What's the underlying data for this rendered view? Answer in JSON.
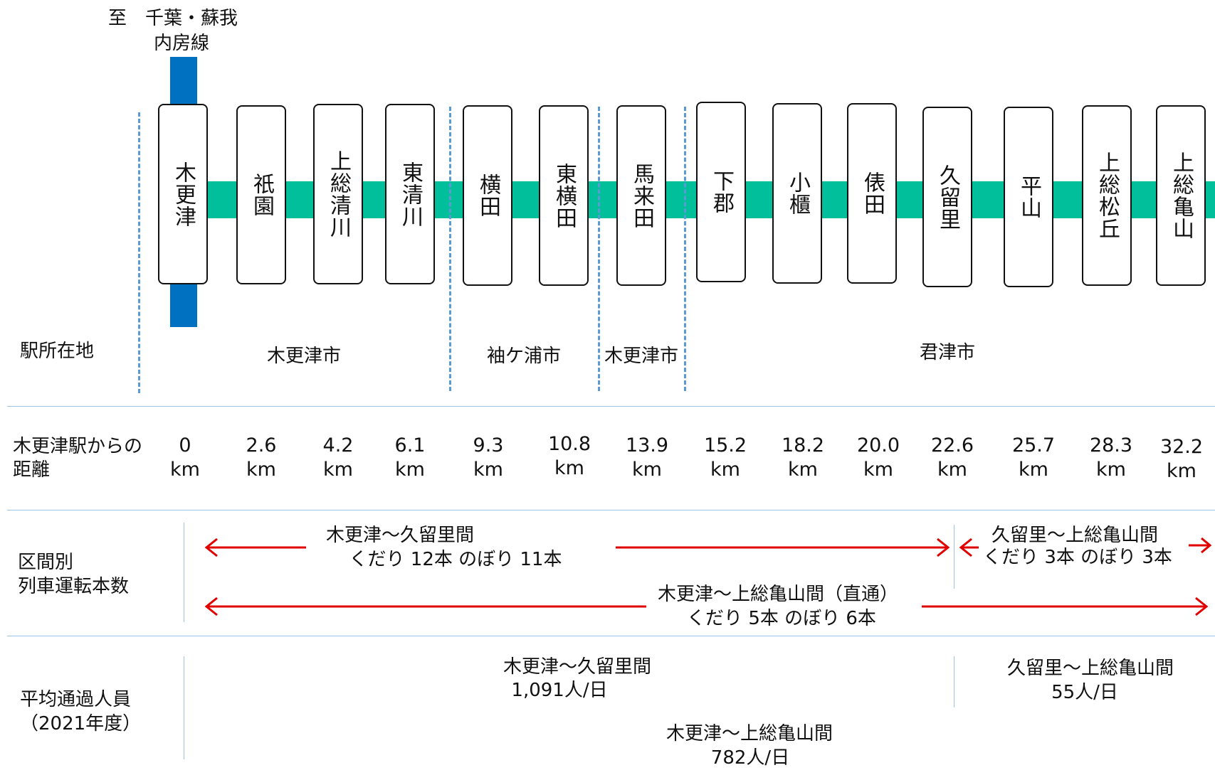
{
  "header": {
    "direction": "至　千葉・蘇我",
    "line": "内房線"
  },
  "stations": [
    {
      "name": "木更津",
      "dist": "0",
      "unit": "km"
    },
    {
      "name": "祇園",
      "dist": "2.6",
      "unit": "km"
    },
    {
      "name": "上総清川",
      "dist": "4.2",
      "unit": "km"
    },
    {
      "name": "東清川",
      "dist": "6.1",
      "unit": "km"
    },
    {
      "name": "横田",
      "dist": "9.3",
      "unit": "km"
    },
    {
      "name": "東横田",
      "dist": "10.8",
      "unit": "km"
    },
    {
      "name": "馬来田",
      "dist": "13.9",
      "unit": "km"
    },
    {
      "name": "下郡",
      "dist": "15.2",
      "unit": "km"
    },
    {
      "name": "小櫃",
      "dist": "18.2",
      "unit": "km"
    },
    {
      "name": "俵田",
      "dist": "20.0",
      "unit": "km"
    },
    {
      "name": "久留里",
      "dist": "22.6",
      "unit": "km"
    },
    {
      "name": "平山",
      "dist": "25.7",
      "unit": "km"
    },
    {
      "name": "上総松丘",
      "dist": "28.3",
      "unit": "km"
    },
    {
      "name": "上総亀山",
      "dist": "32.2",
      "unit": "km"
    }
  ],
  "rows": {
    "location_label": "駅所在地",
    "distance_label_1": "木更津駅からの",
    "distance_label_2": "距離",
    "trains_label_1": "区間別",
    "trains_label_2": "列車運転本数",
    "ridership_label_1": "平均通過人員",
    "ridership_label_2": "（2021年度）"
  },
  "municipalities": [
    {
      "name": "木更津市"
    },
    {
      "name": "袖ケ浦市"
    },
    {
      "name": "木更津市"
    },
    {
      "name": "君津市"
    }
  ],
  "trains": {
    "seg1_title": "木更津～久留里間",
    "seg1_detail": "くだり  12本  のぼり  11本",
    "seg2_title": "久留里～上総亀山間",
    "seg2_detail": "くだり  3本  のぼり  3本",
    "through_title": "木更津～上総亀山間（直通）",
    "through_detail": "くだり  5本  のぼり  6本"
  },
  "ridership": {
    "seg1_title": "木更津～久留里間",
    "seg1_value": "1,091人/日",
    "seg2_title": "久留里～上総亀山間",
    "seg2_value": "55人/日",
    "through_title": "木更津～上総亀山間",
    "through_value": "782人/日"
  },
  "colors": {
    "track": "#00bf9a",
    "uchibo_line": "#0070c0",
    "boundary": "#5b9bd5",
    "arrow": "#e00000",
    "separator": "#9dc3e6"
  }
}
